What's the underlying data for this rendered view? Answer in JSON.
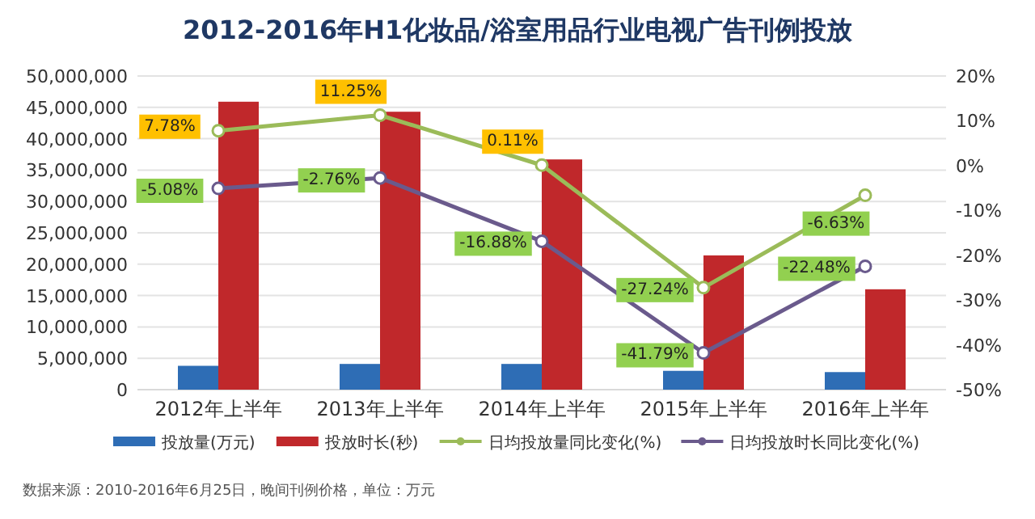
{
  "chart_data": {
    "type": "bar",
    "title": "2012-2016年H1化妆品/浴室用品行业电视广告刊例投放",
    "categories": [
      "2012年上半年",
      "2013年上半年",
      "2014年上半年",
      "2015年上半年",
      "2016年上半年"
    ],
    "series": [
      {
        "name": "投放量(万元)",
        "color": "#2e6db5",
        "values": [
          3800000,
          4100000,
          4100000,
          3000000,
          2800000
        ]
      },
      {
        "name": "投放时长(秒)",
        "color": "#c0282b",
        "values": [
          45900000,
          44300000,
          36700000,
          21400000,
          16000000
        ]
      },
      {
        "name": "日均投放量同比变化(%)",
        "type": "line",
        "axis": "y2",
        "color": "#9bbb59",
        "values": [
          7.78,
          11.25,
          0.11,
          -27.24,
          -6.63
        ],
        "value_labels": [
          "7.78%",
          "11.25%",
          "0.11%",
          "-27.24%",
          "-6.63%"
        ]
      },
      {
        "name": "日均投放时长同比变化(%)",
        "type": "line",
        "axis": "y2",
        "color": "#6a5a8c",
        "values": [
          -5.08,
          -2.76,
          -16.88,
          -41.79,
          -22.48
        ],
        "value_labels": [
          "-5.08%",
          "-2.76%",
          "-16.88%",
          "-41.79%",
          "-22.48%"
        ]
      }
    ],
    "ylim": [
      0,
      50000000
    ],
    "yticks": [
      {
        "value": 0,
        "label": "0"
      },
      {
        "value": 5000000,
        "label": "5,000,000"
      },
      {
        "value": 10000000,
        "label": "10,000,000"
      },
      {
        "value": 15000000,
        "label": "15,000,000"
      },
      {
        "value": 20000000,
        "label": "20,000,000"
      },
      {
        "value": 25000000,
        "label": "25,000,000"
      },
      {
        "value": 30000000,
        "label": "30,000,000"
      },
      {
        "value": 35000000,
        "label": "35,000,000"
      },
      {
        "value": 40000000,
        "label": "40,000,000"
      },
      {
        "value": 45000000,
        "label": "45,000,000"
      },
      {
        "value": 50000000,
        "label": "50,000,000"
      }
    ],
    "y2lim": [
      -50,
      20
    ],
    "y2ticks": [
      {
        "value": -50,
        "label": "-50%"
      },
      {
        "value": -40,
        "label": "-40%"
      },
      {
        "value": -30,
        "label": "-30%"
      },
      {
        "value": -20,
        "label": "-20%"
      },
      {
        "value": -10,
        "label": "-10%"
      },
      {
        "value": 0,
        "label": "0%"
      },
      {
        "value": 10,
        "label": "10%"
      },
      {
        "value": 20,
        "label": "20%"
      }
    ],
    "grid": "y",
    "legend": "bottom",
    "marker": "circle",
    "annotations": [
      "数据来源：2010-2016年6月25日，晚间刊例价格，单位：万元"
    ]
  }
}
